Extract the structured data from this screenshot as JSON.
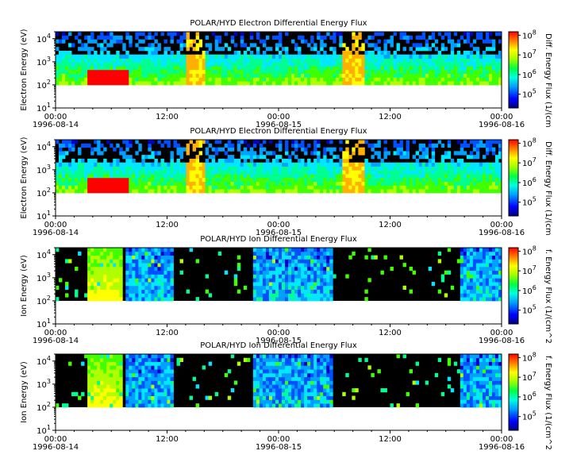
{
  "chart_data": [
    {
      "type": "heatmap",
      "title": "POLAR/HYD  Electron Differential Energy Flux",
      "ylabel": "Electron Energy (eV)",
      "yscale": "log",
      "ylim": [
        10,
        20000
      ],
      "yticks": [
        {
          "base": "10",
          "exp": "1"
        },
        {
          "base": "10",
          "exp": "2"
        },
        {
          "base": "10",
          "exp": "3"
        },
        {
          "base": "10",
          "exp": "4"
        }
      ],
      "xlim": [
        "1996-08-14 00:00",
        "1996-08-16 00:00"
      ],
      "xticks": [
        {
          "time": "00:00",
          "date": "1996-08-14"
        },
        {
          "time": "12:00",
          "date": ""
        },
        {
          "time": "00:00",
          "date": "1996-08-15"
        },
        {
          "time": "12:00",
          "date": ""
        },
        {
          "time": "00:00",
          "date": "1996-08-16"
        }
      ],
      "colorbar": {
        "label": "Diff. Energy Flux (1/(cm",
        "scale": "log",
        "range": [
          20000,
          150000000
        ],
        "ticks": [
          {
            "base": "10",
            "exp": "5"
          },
          {
            "base": "10",
            "exp": "6"
          },
          {
            "base": "10",
            "exp": "7"
          },
          {
            "base": "10",
            "exp": "8"
          }
        ]
      },
      "channel_min_energy_eV": 100,
      "background": "#000000"
    },
    {
      "type": "heatmap",
      "title": "POLAR/HYD  Electron Differential Energy Flux",
      "ylabel": "Electron Energy (eV)",
      "yscale": "log",
      "ylim": [
        10,
        20000
      ],
      "yticks": [
        {
          "base": "10",
          "exp": "1"
        },
        {
          "base": "10",
          "exp": "2"
        },
        {
          "base": "10",
          "exp": "3"
        },
        {
          "base": "10",
          "exp": "4"
        }
      ],
      "xlim": [
        "1996-08-14 00:00",
        "1996-08-16 00:00"
      ],
      "xticks": [
        {
          "time": "00:00",
          "date": "1996-08-14"
        },
        {
          "time": "12:00",
          "date": ""
        },
        {
          "time": "00:00",
          "date": "1996-08-15"
        },
        {
          "time": "12:00",
          "date": ""
        },
        {
          "time": "00:00",
          "date": "1996-08-16"
        }
      ],
      "colorbar": {
        "label": "Diff. Energy Flux (1/(cm",
        "scale": "log",
        "range": [
          20000,
          150000000
        ],
        "ticks": [
          {
            "base": "10",
            "exp": "5"
          },
          {
            "base": "10",
            "exp": "6"
          },
          {
            "base": "10",
            "exp": "7"
          },
          {
            "base": "10",
            "exp": "8"
          }
        ]
      },
      "channel_min_energy_eV": 100,
      "background": "#000000"
    },
    {
      "type": "heatmap",
      "title": "POLAR/HYD  Ion Differential Energy Flux",
      "ylabel": "Ion Energy (eV)",
      "yscale": "log",
      "ylim": [
        10,
        20000
      ],
      "yticks": [
        {
          "base": "10",
          "exp": "1"
        },
        {
          "base": "10",
          "exp": "2"
        },
        {
          "base": "10",
          "exp": "3"
        },
        {
          "base": "10",
          "exp": "4"
        }
      ],
      "xlim": [
        "1996-08-14 00:00",
        "1996-08-16 00:00"
      ],
      "xticks": [
        {
          "time": "00:00",
          "date": "1996-08-14"
        },
        {
          "time": "12:00",
          "date": ""
        },
        {
          "time": "00:00",
          "date": "1996-08-15"
        },
        {
          "time": "12:00",
          "date": ""
        },
        {
          "time": "00:00",
          "date": "1996-08-16"
        }
      ],
      "colorbar": {
        "label": "f. Energy Flux (1/(cm^2",
        "scale": "log",
        "range": [
          20000,
          150000000
        ],
        "ticks": [
          {
            "base": "10",
            "exp": "5"
          },
          {
            "base": "10",
            "exp": "6"
          },
          {
            "base": "10",
            "exp": "7"
          },
          {
            "base": "10",
            "exp": "8"
          }
        ]
      },
      "channel_min_energy_eV": 100,
      "background": "#000000"
    },
    {
      "type": "heatmap",
      "title": "POLAR/HYD  Ion Differential Energy Flux",
      "ylabel": "Ion Energy (eV)",
      "yscale": "log",
      "ylim": [
        10,
        20000
      ],
      "yticks": [
        {
          "base": "10",
          "exp": "1"
        },
        {
          "base": "10",
          "exp": "2"
        },
        {
          "base": "10",
          "exp": "3"
        },
        {
          "base": "10",
          "exp": "4"
        }
      ],
      "xlim": [
        "1996-08-14 00:00",
        "1996-08-16 00:00"
      ],
      "xticks": [
        {
          "time": "00:00",
          "date": "1996-08-14"
        },
        {
          "time": "12:00",
          "date": ""
        },
        {
          "time": "00:00",
          "date": "1996-08-15"
        },
        {
          "time": "12:00",
          "date": ""
        },
        {
          "time": "00:00",
          "date": "1996-08-16"
        }
      ],
      "colorbar": {
        "label": "f. Energy Flux (1/(cm^2",
        "scale": "log",
        "range": [
          20000,
          150000000
        ],
        "ticks": [
          {
            "base": "10",
            "exp": "5"
          },
          {
            "base": "10",
            "exp": "6"
          },
          {
            "base": "10",
            "exp": "7"
          },
          {
            "base": "10",
            "exp": "8"
          }
        ]
      },
      "channel_min_energy_eV": 100,
      "background": "#000000"
    }
  ]
}
